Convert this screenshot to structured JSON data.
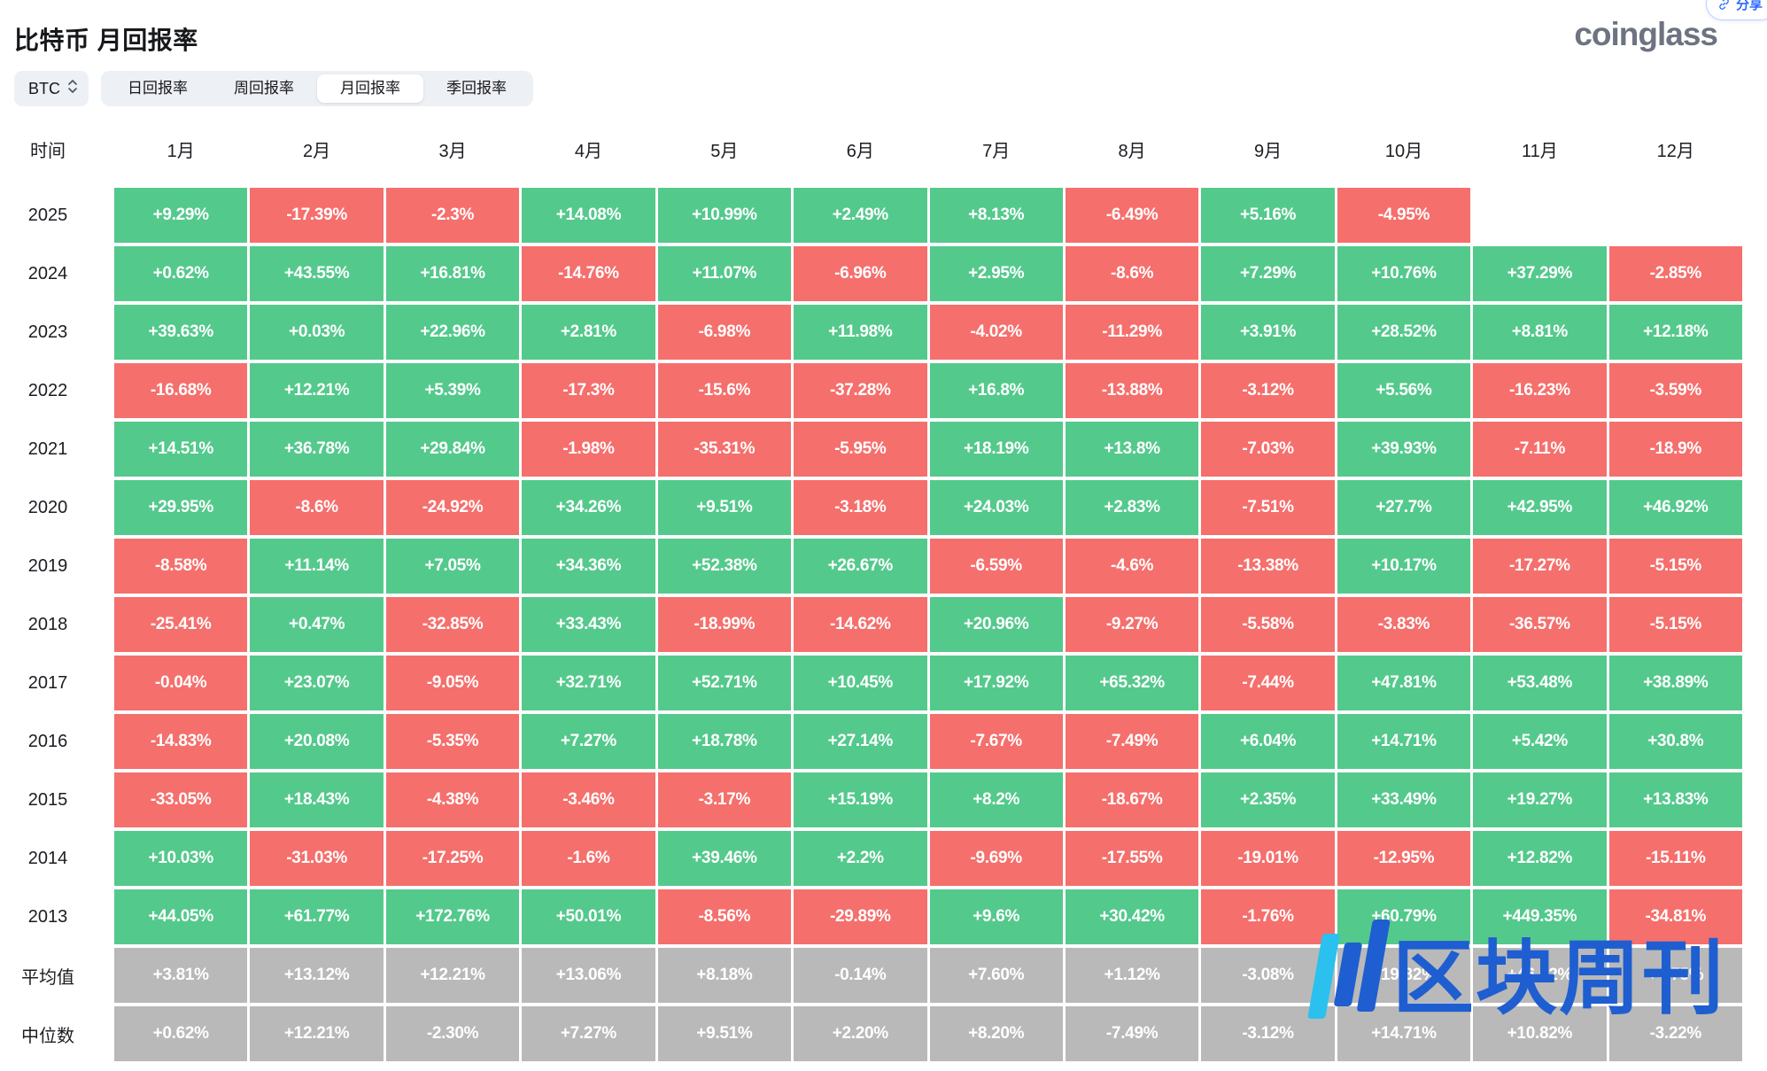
{
  "header": {
    "title": "比特币 月回报率",
    "brand": "coinglass",
    "share_label": "分享"
  },
  "controls": {
    "coin_select": {
      "value": "BTC"
    },
    "tabs": [
      {
        "label": "日回报率",
        "active": false
      },
      {
        "label": "周回报率",
        "active": false
      },
      {
        "label": "月回报率",
        "active": true
      },
      {
        "label": "季回报率",
        "active": false
      }
    ]
  },
  "colors": {
    "positive": "#54c98c",
    "negative": "#f56f6c",
    "neutral": "#b9b9b9",
    "watermark_blue": "#1e5ed0",
    "watermark_cyan": "#2ac1ef"
  },
  "watermark": {
    "text": "区块周刊"
  },
  "table": {
    "time_header": "时间",
    "months": [
      "1月",
      "2月",
      "3月",
      "4月",
      "5月",
      "6月",
      "7月",
      "8月",
      "9月",
      "10月",
      "11月",
      "12月"
    ],
    "rows": [
      {
        "label": "2025",
        "summary": false,
        "cells": [
          "+9.29%",
          "-17.39%",
          "-2.3%",
          "+14.08%",
          "+10.99%",
          "+2.49%",
          "+8.13%",
          "-6.49%",
          "+5.16%",
          "-4.95%",
          "",
          ""
        ]
      },
      {
        "label": "2024",
        "summary": false,
        "cells": [
          "+0.62%",
          "+43.55%",
          "+16.81%",
          "-14.76%",
          "+11.07%",
          "-6.96%",
          "+2.95%",
          "-8.6%",
          "+7.29%",
          "+10.76%",
          "+37.29%",
          "-2.85%"
        ]
      },
      {
        "label": "2023",
        "summary": false,
        "cells": [
          "+39.63%",
          "+0.03%",
          "+22.96%",
          "+2.81%",
          "-6.98%",
          "+11.98%",
          "-4.02%",
          "-11.29%",
          "+3.91%",
          "+28.52%",
          "+8.81%",
          "+12.18%"
        ]
      },
      {
        "label": "2022",
        "summary": false,
        "cells": [
          "-16.68%",
          "+12.21%",
          "+5.39%",
          "-17.3%",
          "-15.6%",
          "-37.28%",
          "+16.8%",
          "-13.88%",
          "-3.12%",
          "+5.56%",
          "-16.23%",
          "-3.59%"
        ]
      },
      {
        "label": "2021",
        "summary": false,
        "cells": [
          "+14.51%",
          "+36.78%",
          "+29.84%",
          "-1.98%",
          "-35.31%",
          "-5.95%",
          "+18.19%",
          "+13.8%",
          "-7.03%",
          "+39.93%",
          "-7.11%",
          "-18.9%"
        ]
      },
      {
        "label": "2020",
        "summary": false,
        "cells": [
          "+29.95%",
          "-8.6%",
          "-24.92%",
          "+34.26%",
          "+9.51%",
          "-3.18%",
          "+24.03%",
          "+2.83%",
          "-7.51%",
          "+27.7%",
          "+42.95%",
          "+46.92%"
        ]
      },
      {
        "label": "2019",
        "summary": false,
        "cells": [
          "-8.58%",
          "+11.14%",
          "+7.05%",
          "+34.36%",
          "+52.38%",
          "+26.67%",
          "-6.59%",
          "-4.6%",
          "-13.38%",
          "+10.17%",
          "-17.27%",
          "-5.15%"
        ]
      },
      {
        "label": "2018",
        "summary": false,
        "cells": [
          "-25.41%",
          "+0.47%",
          "-32.85%",
          "+33.43%",
          "-18.99%",
          "-14.62%",
          "+20.96%",
          "-9.27%",
          "-5.58%",
          "-3.83%",
          "-36.57%",
          "-5.15%"
        ]
      },
      {
        "label": "2017",
        "summary": false,
        "cells": [
          "-0.04%",
          "+23.07%",
          "-9.05%",
          "+32.71%",
          "+52.71%",
          "+10.45%",
          "+17.92%",
          "+65.32%",
          "-7.44%",
          "+47.81%",
          "+53.48%",
          "+38.89%"
        ]
      },
      {
        "label": "2016",
        "summary": false,
        "cells": [
          "-14.83%",
          "+20.08%",
          "-5.35%",
          "+7.27%",
          "+18.78%",
          "+27.14%",
          "-7.67%",
          "-7.49%",
          "+6.04%",
          "+14.71%",
          "+5.42%",
          "+30.8%"
        ]
      },
      {
        "label": "2015",
        "summary": false,
        "cells": [
          "-33.05%",
          "+18.43%",
          "-4.38%",
          "-3.46%",
          "-3.17%",
          "+15.19%",
          "+8.2%",
          "-18.67%",
          "+2.35%",
          "+33.49%",
          "+19.27%",
          "+13.83%"
        ]
      },
      {
        "label": "2014",
        "summary": false,
        "cells": [
          "+10.03%",
          "-31.03%",
          "-17.25%",
          "-1.6%",
          "+39.46%",
          "+2.2%",
          "-9.69%",
          "-17.55%",
          "-19.01%",
          "-12.95%",
          "+12.82%",
          "-15.11%"
        ]
      },
      {
        "label": "2013",
        "summary": false,
        "cells": [
          "+44.05%",
          "+61.77%",
          "+172.76%",
          "+50.01%",
          "-8.56%",
          "-29.89%",
          "+9.6%",
          "+30.42%",
          "-1.76%",
          "+60.79%",
          "+449.35%",
          "-34.81%"
        ]
      },
      {
        "label": "平均值",
        "summary": true,
        "cells": [
          "+3.81%",
          "+13.12%",
          "+12.21%",
          "+13.06%",
          "+8.18%",
          "-0.14%",
          "+7.60%",
          "+1.12%",
          "-3.08%",
          "+19.82%",
          "+46.02%",
          "+4.75%"
        ]
      },
      {
        "label": "中位数",
        "summary": true,
        "cells": [
          "+0.62%",
          "+12.21%",
          "-2.30%",
          "+7.27%",
          "+9.51%",
          "+2.20%",
          "+8.20%",
          "-7.49%",
          "-3.12%",
          "+14.71%",
          "+10.82%",
          "-3.22%"
        ]
      }
    ]
  }
}
